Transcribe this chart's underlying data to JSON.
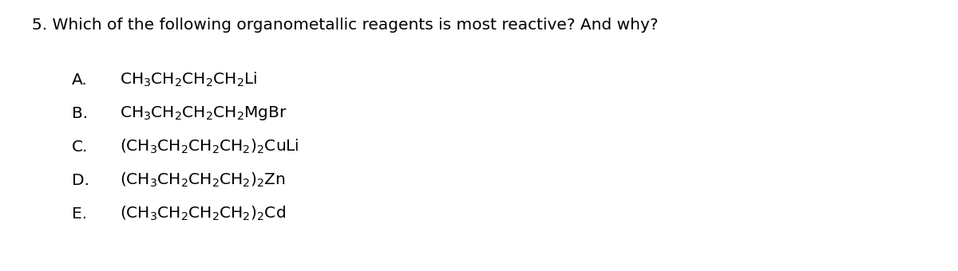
{
  "title": "5. Which of the following organometallic reagents is most reactive? And why?",
  "background_color": "#ffffff",
  "text_color": "#000000",
  "title_fontsize": 14.5,
  "option_fontsize": 14.5,
  "options": [
    {
      "label": "A.",
      "formula": "$\\mathrm{CH_3CH_2CH_2CH_2Li}$"
    },
    {
      "label": "B.",
      "formula": "$\\mathrm{CH_3CH_2CH_2CH_2MgBr}$"
    },
    {
      "label": "C.",
      "formula": "$\\mathrm{(CH_3CH_2CH_2CH_2)_2CuLi}$"
    },
    {
      "label": "D.",
      "formula": "$\\mathrm{(CH_3CH_2CH_2CH_2)_2Zn}$"
    },
    {
      "label": "E.",
      "formula": "$\\mathrm{(CH_3CH_2CH_2CH_2)_2Cd}$"
    }
  ]
}
